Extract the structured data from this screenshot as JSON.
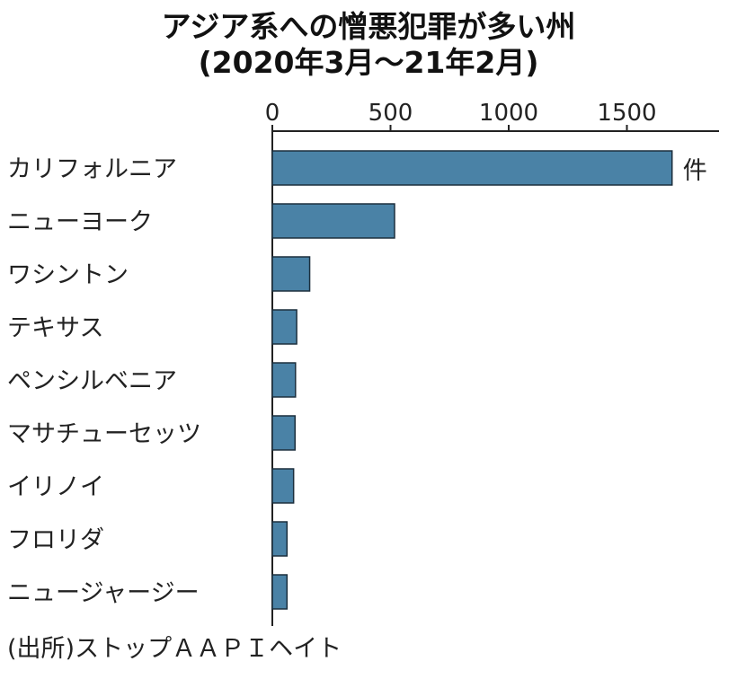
{
  "chart_data": {
    "type": "bar",
    "orientation": "horizontal",
    "title": "アジア系への憎悪犯罪が多い州",
    "subtitle": "(2020年3月～21年2月)",
    "unit": "件",
    "categories": [
      "カリフォルニア",
      "ニューヨーク",
      "ワシントン",
      "テキサス",
      "ペンシルベニア",
      "マサチューセッツ",
      "イリノイ",
      "フロリダ",
      "ニュージャージー"
    ],
    "values": [
      1691,
      517,
      158,
      103,
      98,
      96,
      90,
      62,
      62
    ],
    "xlim": [
      0,
      1800
    ],
    "xticks": [
      0,
      500,
      1000,
      1500
    ],
    "bar_color": "#4a82a6",
    "grid": false,
    "source": "(出所)ストップＡＡＰＩヘイト"
  }
}
